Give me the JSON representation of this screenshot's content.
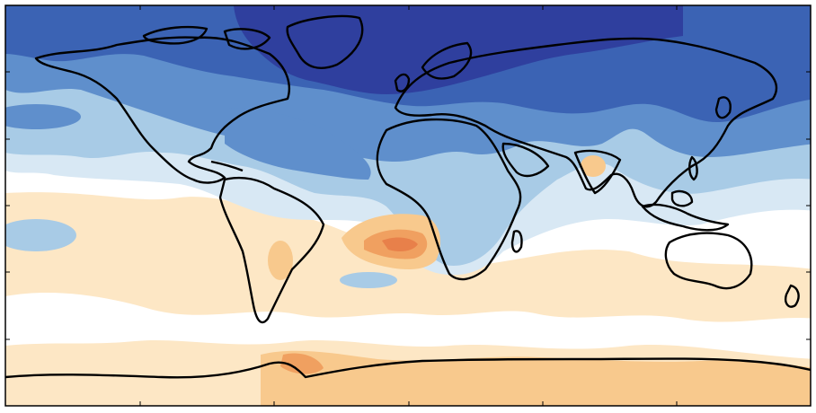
{
  "map": {
    "projection": "equirectangular",
    "frame_ticks": true,
    "palette": {
      "deep_blue": "#2f3f9e",
      "blue": "#3b63b4",
      "mid_blue": "#5f8fcc",
      "light_blue": "#a8cbe6",
      "pale_blue": "#d8e8f4",
      "white": "#ffffff",
      "pale_orange": "#fde7c5",
      "light_orange": "#f8c98d",
      "orange": "#f0a060",
      "deep_orange": "#e8804a",
      "coastline": "#000000"
    }
  }
}
